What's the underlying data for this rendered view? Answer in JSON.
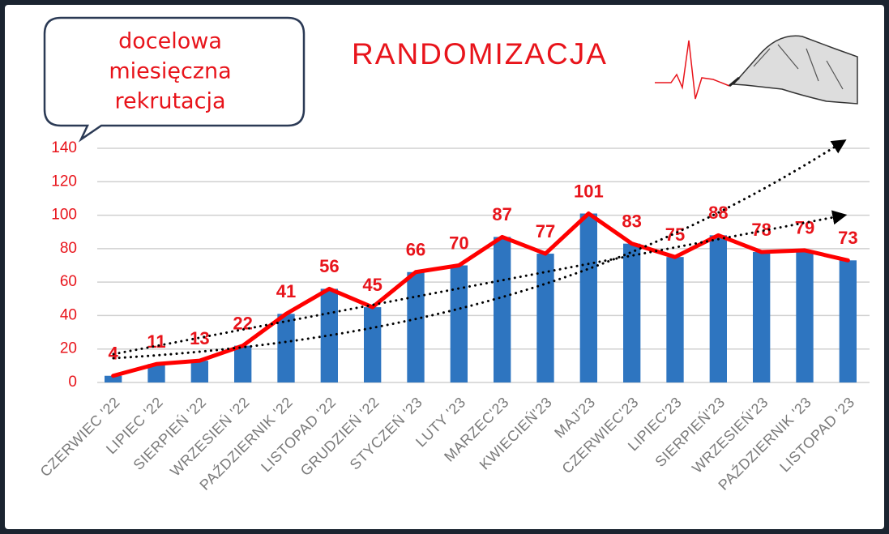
{
  "chart_data": {
    "type": "bar",
    "title": "RANDOMIZACJA",
    "annotation": [
      "docelowa",
      "miesięczna",
      "rekrutacja"
    ],
    "categories": [
      "CZERWIEC '22",
      "LIPIEC '22",
      "SIERPIEŃ '22",
      "WRZESIEŃ '22",
      "PAŹDZIERNIK '22",
      "LISTOPAD '22",
      "GRUDZIEŃ '22",
      "STYCZEŃ '23",
      "LUTY '23",
      "MARZEC'23",
      "KWIECIEŃ'23",
      "MAJ'23",
      "CZERWIEC'23",
      "LIPIEC'23",
      "SIERPIEŃ'23",
      "WRZESIEŃ'23",
      "PAŹDZIERNIK '23",
      "LISTOPAD '23"
    ],
    "values": [
      4,
      11,
      13,
      22,
      41,
      56,
      45,
      66,
      70,
      87,
      77,
      101,
      83,
      75,
      88,
      78,
      79,
      73
    ],
    "color": "#2e75c0",
    "line_color": "#ff0000",
    "ylim": [
      0,
      140
    ],
    "yticks": [
      0,
      20,
      40,
      60,
      80,
      100,
      120,
      140
    ],
    "grid": true
  }
}
